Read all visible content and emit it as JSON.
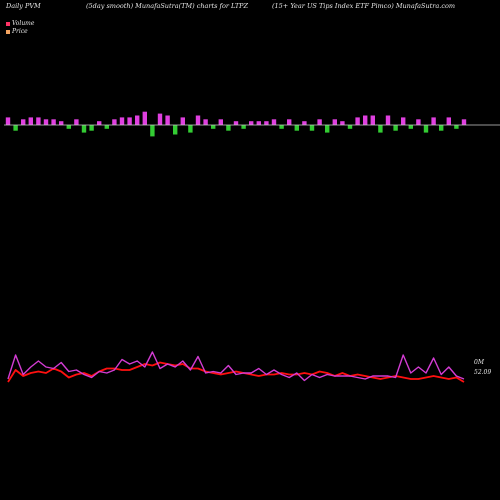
{
  "header": {
    "left": "Daily PVM",
    "middle": "(5day smooth) MunafaSutra(TM) charts for LTPZ",
    "right": "(15+ Year US Tips Index ETF Pimco) MunafaSutra.com"
  },
  "legend": {
    "volume_label": "Volume",
    "price_label": "Price",
    "volume_color": "#ff3366",
    "price_color": "#f4a460"
  },
  "colors": {
    "up_bar": "#e040e0",
    "down_bar": "#33cc33",
    "pvm_line": "#d33cd3",
    "price_line": "#ff1010",
    "zero_line": "#cccccc"
  },
  "chart_data": [
    {
      "type": "bar",
      "name": "pvm-bars",
      "x": [
        1,
        2,
        3,
        4,
        5,
        6,
        7,
        8,
        9,
        10,
        11,
        12,
        13,
        14,
        15,
        16,
        17,
        18,
        19,
        20,
        21,
        22,
        23,
        24,
        25,
        26,
        27,
        28,
        29,
        30,
        31,
        32,
        33,
        34,
        35,
        36,
        37,
        38,
        39,
        40,
        41,
        42,
        43,
        44,
        45,
        46,
        47,
        48,
        49,
        50,
        51,
        52,
        53,
        54,
        55,
        56,
        57,
        58,
        59,
        60,
        61
      ],
      "values": [
        4,
        -3,
        3,
        4,
        4,
        3,
        3,
        2,
        -2,
        3,
        -4,
        -3,
        2,
        -2,
        3,
        4,
        4,
        5,
        7,
        -6,
        6,
        5,
        -5,
        4,
        -4,
        5,
        3,
        -2,
        3,
        -3,
        2,
        -2,
        2,
        2,
        2,
        3,
        -2,
        3,
        -3,
        2,
        -3,
        3,
        -4,
        3,
        2,
        -2,
        4,
        5,
        5,
        -4,
        5,
        -3,
        4,
        -2,
        3,
        -4,
        4,
        -3,
        4,
        -2,
        3
      ],
      "ylim": [
        -10,
        10
      ]
    },
    {
      "type": "line",
      "name": "price-pvm",
      "x": [
        1,
        2,
        3,
        4,
        5,
        6,
        7,
        8,
        9,
        10,
        11,
        12,
        13,
        14,
        15,
        16,
        17,
        18,
        19,
        20,
        21,
        22,
        23,
        24,
        25,
        26,
        27,
        28,
        29,
        30,
        31,
        32,
        33,
        34,
        35,
        36,
        37,
        38,
        39,
        40,
        41,
        42,
        43,
        44,
        45,
        46,
        47,
        48,
        49,
        50,
        51,
        52,
        53,
        54,
        55,
        56,
        57,
        58,
        59,
        60,
        61
      ],
      "series": [
        {
          "values": [
            52,
            60,
            56,
            58,
            59,
            58,
            61,
            59,
            55,
            57,
            58,
            56,
            59,
            61,
            61,
            60,
            60,
            62,
            64,
            63,
            65,
            64,
            63,
            64,
            61,
            61,
            59,
            58,
            57,
            58,
            59,
            58,
            57,
            56,
            57,
            57,
            58,
            57,
            57,
            58,
            57,
            59,
            58,
            56,
            58,
            56,
            57,
            56,
            55,
            54,
            55,
            56,
            55,
            54,
            54,
            55,
            56,
            55,
            54,
            55,
            52
          ]
        },
        {
          "values": [
            54,
            70,
            57,
            62,
            66,
            62,
            61,
            65,
            59,
            60,
            57,
            55,
            59,
            58,
            60,
            67,
            64,
            66,
            62,
            72,
            61,
            64,
            62,
            66,
            60,
            69,
            58,
            59,
            58,
            63,
            57,
            58,
            58,
            61,
            57,
            60,
            57,
            55,
            58,
            53,
            57,
            55,
            57,
            56,
            56,
            56,
            55,
            54,
            56,
            56,
            56,
            55,
            70,
            58,
            62,
            58,
            68,
            57,
            62,
            56,
            54
          ]
        }
      ],
      "right_label": "0M",
      "price_label": "52.09",
      "ylim": [
        40,
        80
      ]
    }
  ]
}
